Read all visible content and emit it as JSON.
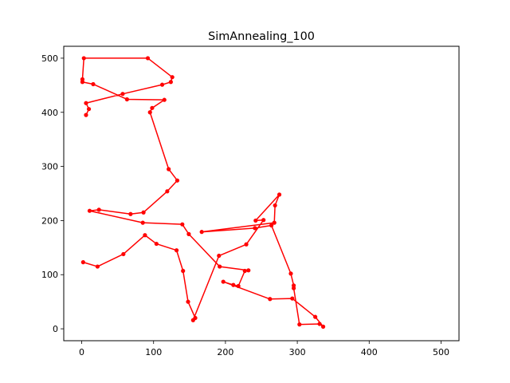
{
  "chart_data": {
    "type": "line",
    "title": "SimAnnealing_100",
    "xlabel": "",
    "ylabel": "",
    "xlim": [
      -25,
      525
    ],
    "ylim": [
      -22,
      522
    ],
    "xticks": [
      0,
      100,
      200,
      300,
      400,
      500
    ],
    "yticks": [
      0,
      100,
      200,
      300,
      400,
      500
    ],
    "grid": false,
    "series": [
      {
        "color": "#ff0000",
        "marker": "circle",
        "x": [
          2,
          22,
          58,
          88,
          104,
          132,
          141,
          148,
          158,
          155,
          191,
          229,
          253,
          242,
          275,
          269,
          268,
          167,
          241,
          264,
          291,
          295,
          295,
          303,
          331,
          336,
          325,
          293,
          262,
          197,
          211,
          218,
          227,
          232,
          192,
          149,
          140,
          85,
          11,
          24,
          68,
          86,
          119,
          133,
          121,
          95,
          98,
          115,
          63,
          16,
          1,
          1,
          3,
          92,
          126,
          124,
          112,
          57,
          6,
          10,
          6
        ],
        "y": [
          123,
          115,
          138,
          173,
          157,
          145,
          107,
          50,
          20,
          16,
          135,
          156,
          201,
          200,
          248,
          228,
          196,
          179,
          186,
          191,
          102,
          80,
          75,
          8,
          9,
          4,
          22,
          56,
          55,
          87,
          81,
          79,
          107,
          108,
          115,
          175,
          193,
          196,
          218,
          220,
          212,
          215,
          254,
          274,
          295,
          400,
          408,
          423,
          424,
          452,
          456,
          461,
          500,
          500,
          465,
          456,
          451,
          434,
          417,
          406,
          395
        ]
      }
    ]
  }
}
